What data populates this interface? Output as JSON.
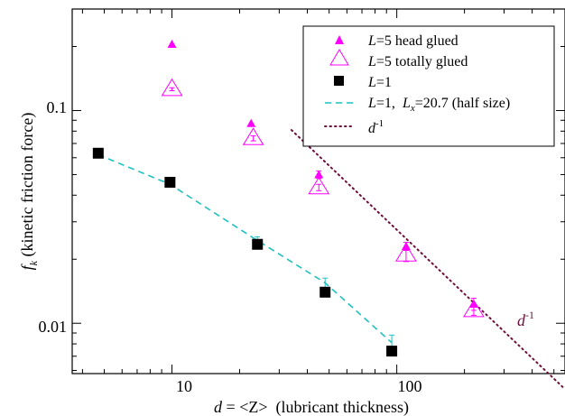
{
  "chart_data": {
    "type": "scatter",
    "title": "",
    "xlabel": {
      "italic": "d",
      "rest": " = <Z>  (lubricant thickness)"
    },
    "ylabel": {
      "italic": "f",
      "sub": "k",
      "rest": " (kinetic friction force)"
    },
    "xscale": "log",
    "yscale": "log",
    "xlim": [
      3.6,
      560
    ],
    "ylim": [
      0.0058,
      0.3
    ],
    "x_tick_labels": [
      "10",
      "100"
    ],
    "y_tick_labels": [
      "0.01",
      "0.1"
    ],
    "grid": false,
    "legend_position": "top-right",
    "series": [
      {
        "name": {
          "italic": "L",
          "rest": "=5 head glued"
        },
        "marker": "filled-triangle",
        "color": "#ff00ff",
        "points": [
          {
            "x": 10,
            "y": 0.205
          },
          {
            "x": 22.5,
            "y": 0.087
          },
          {
            "x": 45,
            "y": 0.05,
            "err": 0.002
          },
          {
            "x": 110,
            "y": 0.023,
            "err": 0.001
          },
          {
            "x": 220,
            "y": 0.0123,
            "err": 0.0008
          }
        ]
      },
      {
        "name": {
          "italic": "L",
          "rest": "=5 totally glued"
        },
        "marker": "open-triangle",
        "color": "#ff00ff",
        "points": [
          {
            "x": 10,
            "y": 0.126,
            "err": 0.002
          },
          {
            "x": 23,
            "y": 0.074,
            "err": 0.002
          },
          {
            "x": 45,
            "y": 0.0435,
            "err": 0.0015
          },
          {
            "x": 110,
            "y": 0.021,
            "err": 0.0015
          },
          {
            "x": 220,
            "y": 0.0115,
            "err": 0.0006
          }
        ]
      },
      {
        "name": {
          "italic": "L",
          "rest": "=1"
        },
        "marker": "filled-square",
        "color": "#000000",
        "points": [
          {
            "x": 4.7,
            "y": 0.063
          },
          {
            "x": 9.8,
            "y": 0.046
          },
          {
            "x": 24,
            "y": 0.0235
          },
          {
            "x": 48,
            "y": 0.014
          },
          {
            "x": 95,
            "y": 0.0074
          }
        ]
      },
      {
        "name": {
          "italic1": "L",
          "mid": "=1,  ",
          "italic2": "L",
          "sub": "x",
          "rest": "=20.7 (half size)"
        },
        "marker": "dashed-line",
        "color": "#20c0c0",
        "points": [
          {
            "x": 4.7,
            "y": 0.062
          },
          {
            "x": 9.8,
            "y": 0.045
          },
          {
            "x": 24,
            "y": 0.0245,
            "err": 0.001
          },
          {
            "x": 48,
            "y": 0.0155,
            "err": 0.0008
          },
          {
            "x": 95,
            "y": 0.0081,
            "err": 0.0007
          }
        ]
      },
      {
        "name": {
          "italic": "d",
          "sup": "-1"
        },
        "marker": "dotted-line",
        "color": "#6b0f3a",
        "points": [
          {
            "x": 34,
            "y": 0.081
          },
          {
            "x": 560,
            "y": 0.0049
          }
        ]
      }
    ],
    "annotations": [
      {
        "text": {
          "italic": "d",
          "sup": "-1"
        },
        "x": 300,
        "y": 0.0108,
        "color": "#6b0f3a"
      }
    ]
  }
}
